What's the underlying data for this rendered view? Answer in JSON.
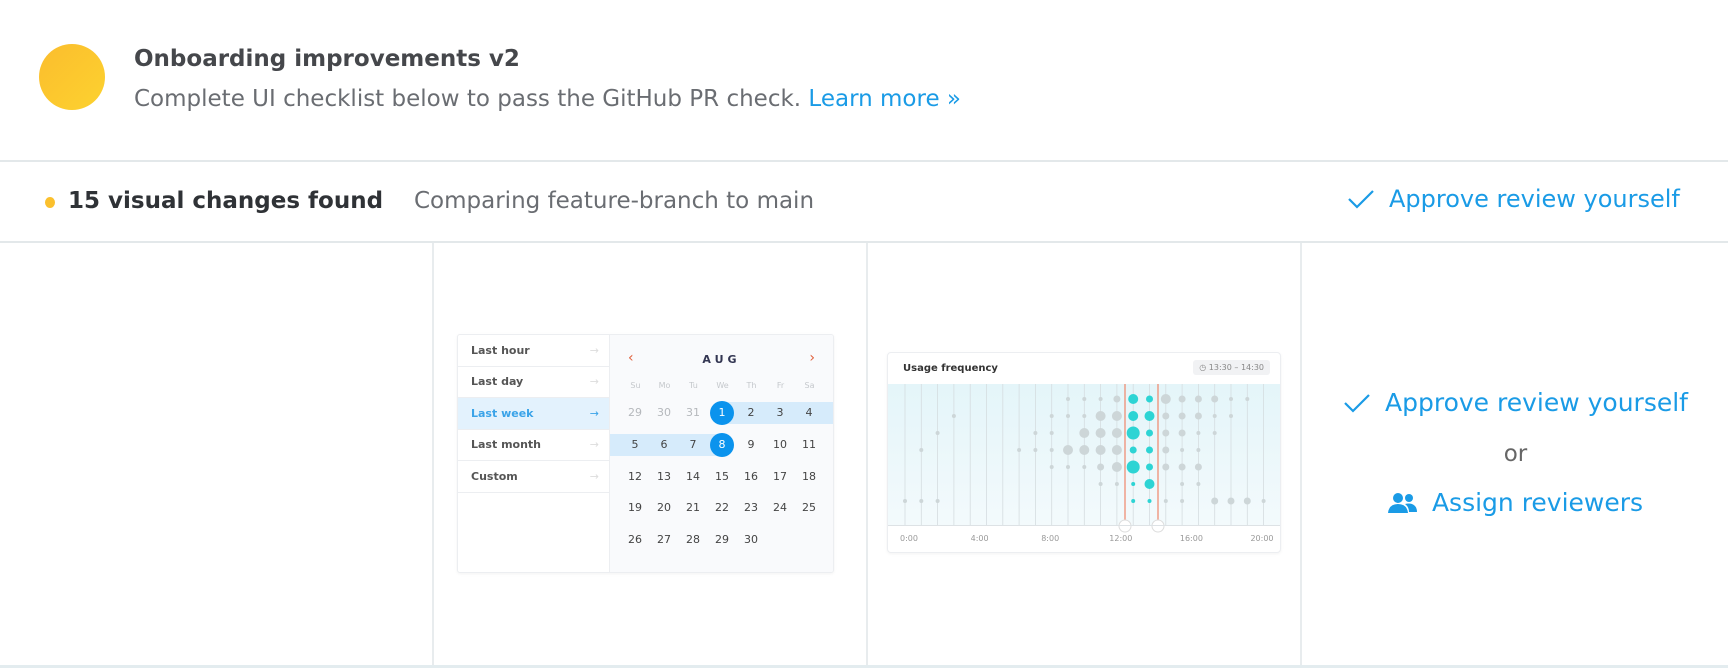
{
  "header": {
    "title": "Onboarding improvements v2",
    "subtitle": "Complete UI checklist below to pass the GitHub PR check.",
    "learn_more": "Learn more »",
    "avatar_color": "#fbc02d"
  },
  "summary": {
    "count_label": "15 visual changes found",
    "comparison": "Comparing feature-branch to main",
    "approve_label": "Approve review yourself",
    "status_color": "#fbc02d"
  },
  "calendar_preview": {
    "presets": [
      {
        "label": "Last hour"
      },
      {
        "label": "Last day"
      },
      {
        "label": "Last week",
        "active": true
      },
      {
        "label": "Last month"
      },
      {
        "label": "Custom"
      }
    ],
    "month": "AUG",
    "day_names": [
      "Su",
      "Mo",
      "Tu",
      "We",
      "Th",
      "Fr",
      "Sa"
    ],
    "weeks": [
      [
        "29",
        "30",
        "31",
        "1",
        "2",
        "3",
        "4"
      ],
      [
        "5",
        "6",
        "7",
        "8",
        "9",
        "10",
        "11"
      ],
      [
        "12",
        "13",
        "14",
        "15",
        "16",
        "17",
        "18"
      ],
      [
        "19",
        "20",
        "21",
        "22",
        "23",
        "24",
        "25"
      ],
      [
        "26",
        "27",
        "28",
        "29",
        "30",
        "",
        ""
      ]
    ],
    "selected_range": [
      "1",
      "8"
    ]
  },
  "usage_chart": {
    "title": "Usage frequency",
    "time_range": "13:30 – 14:30",
    "x_labels": [
      "0:00",
      "4:00",
      "8:00",
      "12:00",
      "16:00",
      "20:00"
    ]
  },
  "chart_data": {
    "type": "scatter",
    "title": "Usage frequency",
    "x_tick_labels": [
      "0:00",
      "4:00",
      "8:00",
      "12:00",
      "16:00",
      "20:00"
    ],
    "highlight_range": "13:30 – 14:30",
    "highlight_color": "#2dd4d4",
    "base_color": "#cdd6d8",
    "marker_color": "#f0866a",
    "size_matrix_rows_by_hour_0_to_22": [
      [
        0,
        0,
        0,
        0,
        0,
        0,
        0,
        0,
        0,
        0,
        1,
        1,
        1,
        2,
        3,
        2,
        3,
        2,
        2,
        2,
        1,
        1,
        0
      ],
      [
        0,
        0,
        0,
        1,
        0,
        0,
        0,
        0,
        0,
        1,
        1,
        1,
        3,
        3,
        3,
        3,
        2,
        2,
        2,
        1,
        1,
        0,
        0
      ],
      [
        0,
        0,
        1,
        0,
        0,
        0,
        0,
        0,
        1,
        1,
        0,
        3,
        3,
        3,
        4,
        2,
        2,
        2,
        1,
        1,
        0,
        0,
        0
      ],
      [
        0,
        1,
        0,
        0,
        0,
        0,
        0,
        1,
        1,
        1,
        3,
        3,
        3,
        3,
        2,
        2,
        2,
        1,
        1,
        0,
        0,
        0,
        0
      ],
      [
        0,
        0,
        0,
        0,
        0,
        0,
        0,
        0,
        0,
        1,
        1,
        1,
        2,
        3,
        4,
        2,
        2,
        2,
        2,
        0,
        0,
        0,
        0
      ],
      [
        0,
        0,
        0,
        0,
        0,
        0,
        0,
        0,
        0,
        0,
        0,
        0,
        1,
        1,
        1,
        3,
        0,
        1,
        1,
        0,
        0,
        0,
        0
      ],
      [
        1,
        1,
        1,
        0,
        0,
        0,
        0,
        0,
        0,
        0,
        0,
        0,
        0,
        0,
        1,
        1,
        1,
        1,
        0,
        2,
        2,
        2,
        1
      ]
    ],
    "highlight_columns": [
      14,
      15
    ]
  },
  "actions": {
    "approve_label": "Approve review yourself",
    "or_label": "or",
    "assign_label": "Assign reviewers",
    "accent_color": "#1a9be6"
  }
}
